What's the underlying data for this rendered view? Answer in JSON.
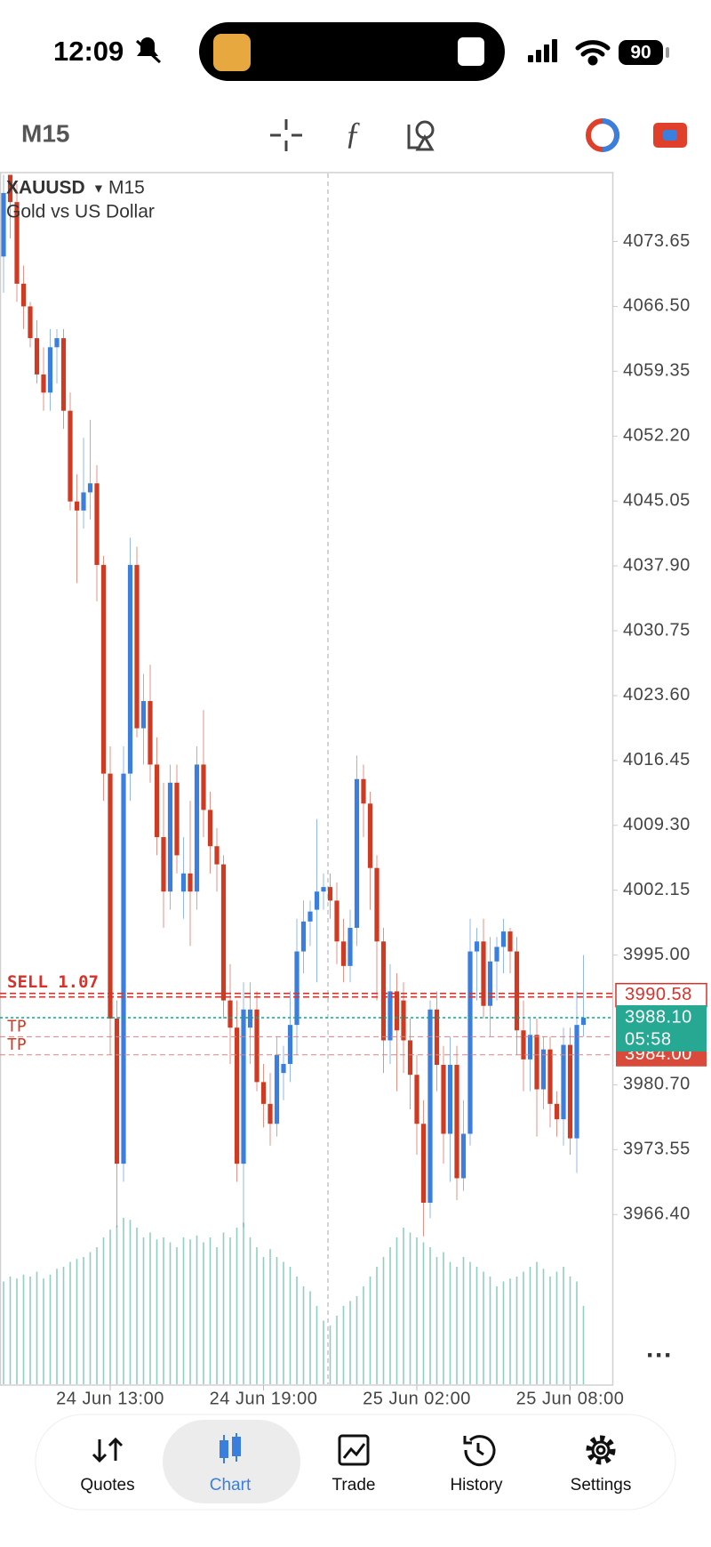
{
  "status_bar": {
    "time": "12:09",
    "battery": "90"
  },
  "toolbar": {
    "timeframe": "M15"
  },
  "chart_data": {
    "type": "candlestick",
    "symbol": "XAUUSD",
    "timeframe": "M15",
    "description": "Gold vs US Dollar",
    "up_color": "#3b7fde",
    "down_color": "#cf3a22",
    "volume_color": "#8fcfc3",
    "ylim": [
      3947.6,
      4081.25
    ],
    "yticks": [
      4073.65,
      {
        "value": 4066.5,
        "label": "4066.50"
      },
      4059.35,
      {
        "value": 4052.2,
        "label": "4052.20"
      },
      4045.05,
      {
        "value": 4037.9,
        "label": "4037.90"
      },
      4030.75,
      {
        "value": 4023.6,
        "label": "4023.60"
      },
      4016.45,
      {
        "value": 4009.3,
        "label": "4009.30"
      },
      4002.15,
      {
        "value": 3995,
        "label": "3995.00"
      },
      {
        "value": 3980.7,
        "label": "3980.70"
      },
      3973.55,
      {
        "value": 3966.4,
        "label": "3966.40"
      }
    ],
    "xticks": [
      {
        "value": 16,
        "label": "24 Jun 13:00"
      },
      {
        "value": 39,
        "label": "24 Jun 19:00"
      },
      {
        "value": 62,
        "label": "25 Jun 02:00"
      },
      {
        "value": 85,
        "label": "25 Jun 08:00"
      }
    ],
    "ohlc": [
      [
        4072,
        4081,
        4068,
        4079
      ],
      [
        4081,
        4081,
        4074,
        4078
      ],
      [
        4078,
        4080,
        4067,
        4069
      ],
      [
        4069,
        4071,
        4064,
        4066.5
      ],
      [
        4066.5,
        4067,
        4062,
        4063
      ],
      [
        4063,
        4065,
        4058,
        4059
      ],
      [
        4059,
        4062,
        4055,
        4057
      ],
      [
        4057,
        4064,
        4055,
        4062
      ],
      [
        4062,
        4064,
        4058,
        4063
      ],
      [
        4063,
        4064,
        4053,
        4055
      ],
      [
        4055,
        4057,
        4044,
        4045
      ],
      [
        4045,
        4048,
        4036,
        4044
      ],
      [
        4044,
        4052,
        4042,
        4046
      ],
      [
        4046,
        4054,
        4043,
        4047
      ],
      [
        4047,
        4049,
        4034,
        4038
      ],
      [
        4038,
        4039,
        4012,
        4015
      ],
      [
        4015,
        4018,
        3984,
        3988
      ],
      [
        3988,
        3990,
        3965,
        3972
      ],
      [
        3972,
        4018,
        3970,
        4015
      ],
      [
        4015,
        4041,
        4012,
        4038
      ],
      [
        4038,
        4040,
        4019,
        4020
      ],
      [
        4020,
        4026,
        4016,
        4023
      ],
      [
        4023,
        4027,
        4014,
        4016
      ],
      [
        4016,
        4019,
        4006,
        4008
      ],
      [
        4008,
        4014,
        3998,
        4002
      ],
      [
        4002,
        4016,
        4000,
        4014
      ],
      [
        4014,
        4016,
        4004,
        4006
      ],
      [
        4002,
        4008,
        3999,
        4004
      ],
      [
        4004,
        4012,
        3996,
        4002
      ],
      [
        4002,
        4018,
        4000,
        4016
      ],
      [
        4016,
        4022,
        4008,
        4011
      ],
      [
        4011,
        4013,
        4004,
        4007
      ],
      [
        4007,
        4009,
        4002,
        4005
      ],
      [
        4005,
        4006,
        3988,
        3990
      ],
      [
        3990,
        3994,
        3983,
        3987
      ],
      [
        3987,
        3990,
        3970,
        3972
      ],
      [
        3972,
        3992,
        3965,
        3989
      ],
      [
        3987,
        3992,
        3983,
        3989
      ],
      [
        3989,
        3991,
        3980,
        3981
      ],
      [
        3981,
        3983,
        3976,
        3978.6
      ],
      [
        3978.6,
        3982,
        3974,
        3976.4
      ],
      [
        3976.4,
        3986,
        3975,
        3984
      ],
      [
        3982,
        3985,
        3979,
        3983
      ],
      [
        3983,
        3991,
        3981,
        3987.3
      ],
      [
        3987.3,
        3999,
        3984,
        3995.4
      ],
      [
        3995.4,
        4001,
        3993,
        3998.7
      ],
      [
        3998.7,
        4001,
        3996,
        3999.8
      ],
      [
        4000,
        4010,
        3992,
        4002
      ],
      [
        4002,
        4004,
        4000,
        4002.5
      ],
      [
        4002.5,
        4004,
        3999,
        4001
      ],
      [
        4001,
        4003,
        3994,
        3996.5
      ],
      [
        3996.5,
        3999,
        3992,
        3993.8
      ],
      [
        3993.8,
        4000,
        3992,
        3998
      ],
      [
        3998,
        4017,
        3996,
        4014.4
      ],
      [
        4014.4,
        4016,
        4008,
        4011.7
      ],
      [
        4011.7,
        4013,
        4000,
        4004.6
      ],
      [
        4004.6,
        4006,
        3990,
        3996.5
      ],
      [
        3996.5,
        3998,
        3982,
        3985.6
      ],
      [
        3985.6,
        3994,
        3983,
        3991
      ],
      [
        3991,
        3993,
        3980,
        3986.7
      ],
      [
        3990,
        3992,
        3982,
        3985.6
      ],
      [
        3985.6,
        3988,
        3978,
        3981.8
      ],
      [
        3981.8,
        3984,
        3973,
        3976.4
      ],
      [
        3976.4,
        3979,
        3964,
        3967.7
      ],
      [
        3967.7,
        3990,
        3966,
        3989
      ],
      [
        3989,
        3991,
        3980,
        3982.9
      ],
      [
        3982.9,
        3985,
        3972,
        3975.3
      ],
      [
        3975.3,
        3986,
        3970,
        3982.9
      ],
      [
        3982.9,
        3985,
        3968,
        3970.4
      ],
      [
        3970.4,
        3979,
        3969,
        3975.3
      ],
      [
        3975.3,
        3999,
        3974,
        3995.4
      ],
      [
        3995.4,
        3998,
        3990,
        3996.5
      ],
      [
        3996.5,
        3999,
        3988,
        3989.4
      ],
      [
        3989.4,
        3997,
        3986,
        3994.3
      ],
      [
        3994.3,
        3997,
        3990,
        3995.9
      ],
      [
        3995.9,
        3999,
        3993,
        3997.6
      ],
      [
        3997.6,
        3998,
        3993,
        3995.4
      ],
      [
        3995.4,
        3997,
        3984,
        3986.7
      ],
      [
        3986.7,
        3990,
        3980,
        3983.5
      ],
      [
        3983.5,
        3988,
        3980,
        3986.2
      ],
      [
        3986.2,
        3988,
        3975,
        3980.2
      ],
      [
        3980.2,
        3986,
        3978,
        3984.6
      ],
      [
        3984.6,
        3986,
        3976,
        3978.6
      ],
      [
        3978.6,
        3980,
        3975,
        3976.9
      ],
      [
        3976.9,
        3987,
        3974,
        3985.1
      ],
      [
        3985.1,
        3987,
        3973,
        3974.8
      ],
      [
        3974.8,
        3991,
        3971,
        3987.3
      ],
      [
        3987.3,
        3995,
        3986,
        3988.1
      ]
    ],
    "volumes": [
      105,
      110,
      108,
      112,
      110,
      115,
      108,
      112,
      118,
      120,
      125,
      128,
      130,
      135,
      140,
      150,
      158,
      162,
      170,
      168,
      160,
      150,
      155,
      148,
      150,
      145,
      140,
      150,
      148,
      152,
      145,
      150,
      140,
      155,
      150,
      160,
      165,
      150,
      140,
      130,
      138,
      130,
      125,
      120,
      110,
      100,
      95,
      80,
      65,
      60,
      70,
      80,
      85,
      90,
      100,
      110,
      120,
      130,
      140,
      150,
      160,
      155,
      150,
      145,
      140,
      130,
      135,
      125,
      120,
      130,
      125,
      120,
      115,
      110,
      100,
      105,
      108,
      110,
      115,
      120,
      125,
      118,
      110,
      115,
      120,
      110,
      105,
      80
    ],
    "sell_line": {
      "label": "SELL 1.07",
      "value": 3990.58
    },
    "bid": {
      "value": 3988.1,
      "label": "3988.10",
      "countdown": "05:58"
    },
    "tp_lines": [
      {
        "label": "TP",
        "value": 3986
      },
      {
        "label": "TP",
        "value": 3984,
        "price_label": "3984.00"
      }
    ]
  },
  "nav": {
    "items": [
      "Quotes",
      "Chart",
      "Trade",
      "History",
      "Settings"
    ]
  }
}
